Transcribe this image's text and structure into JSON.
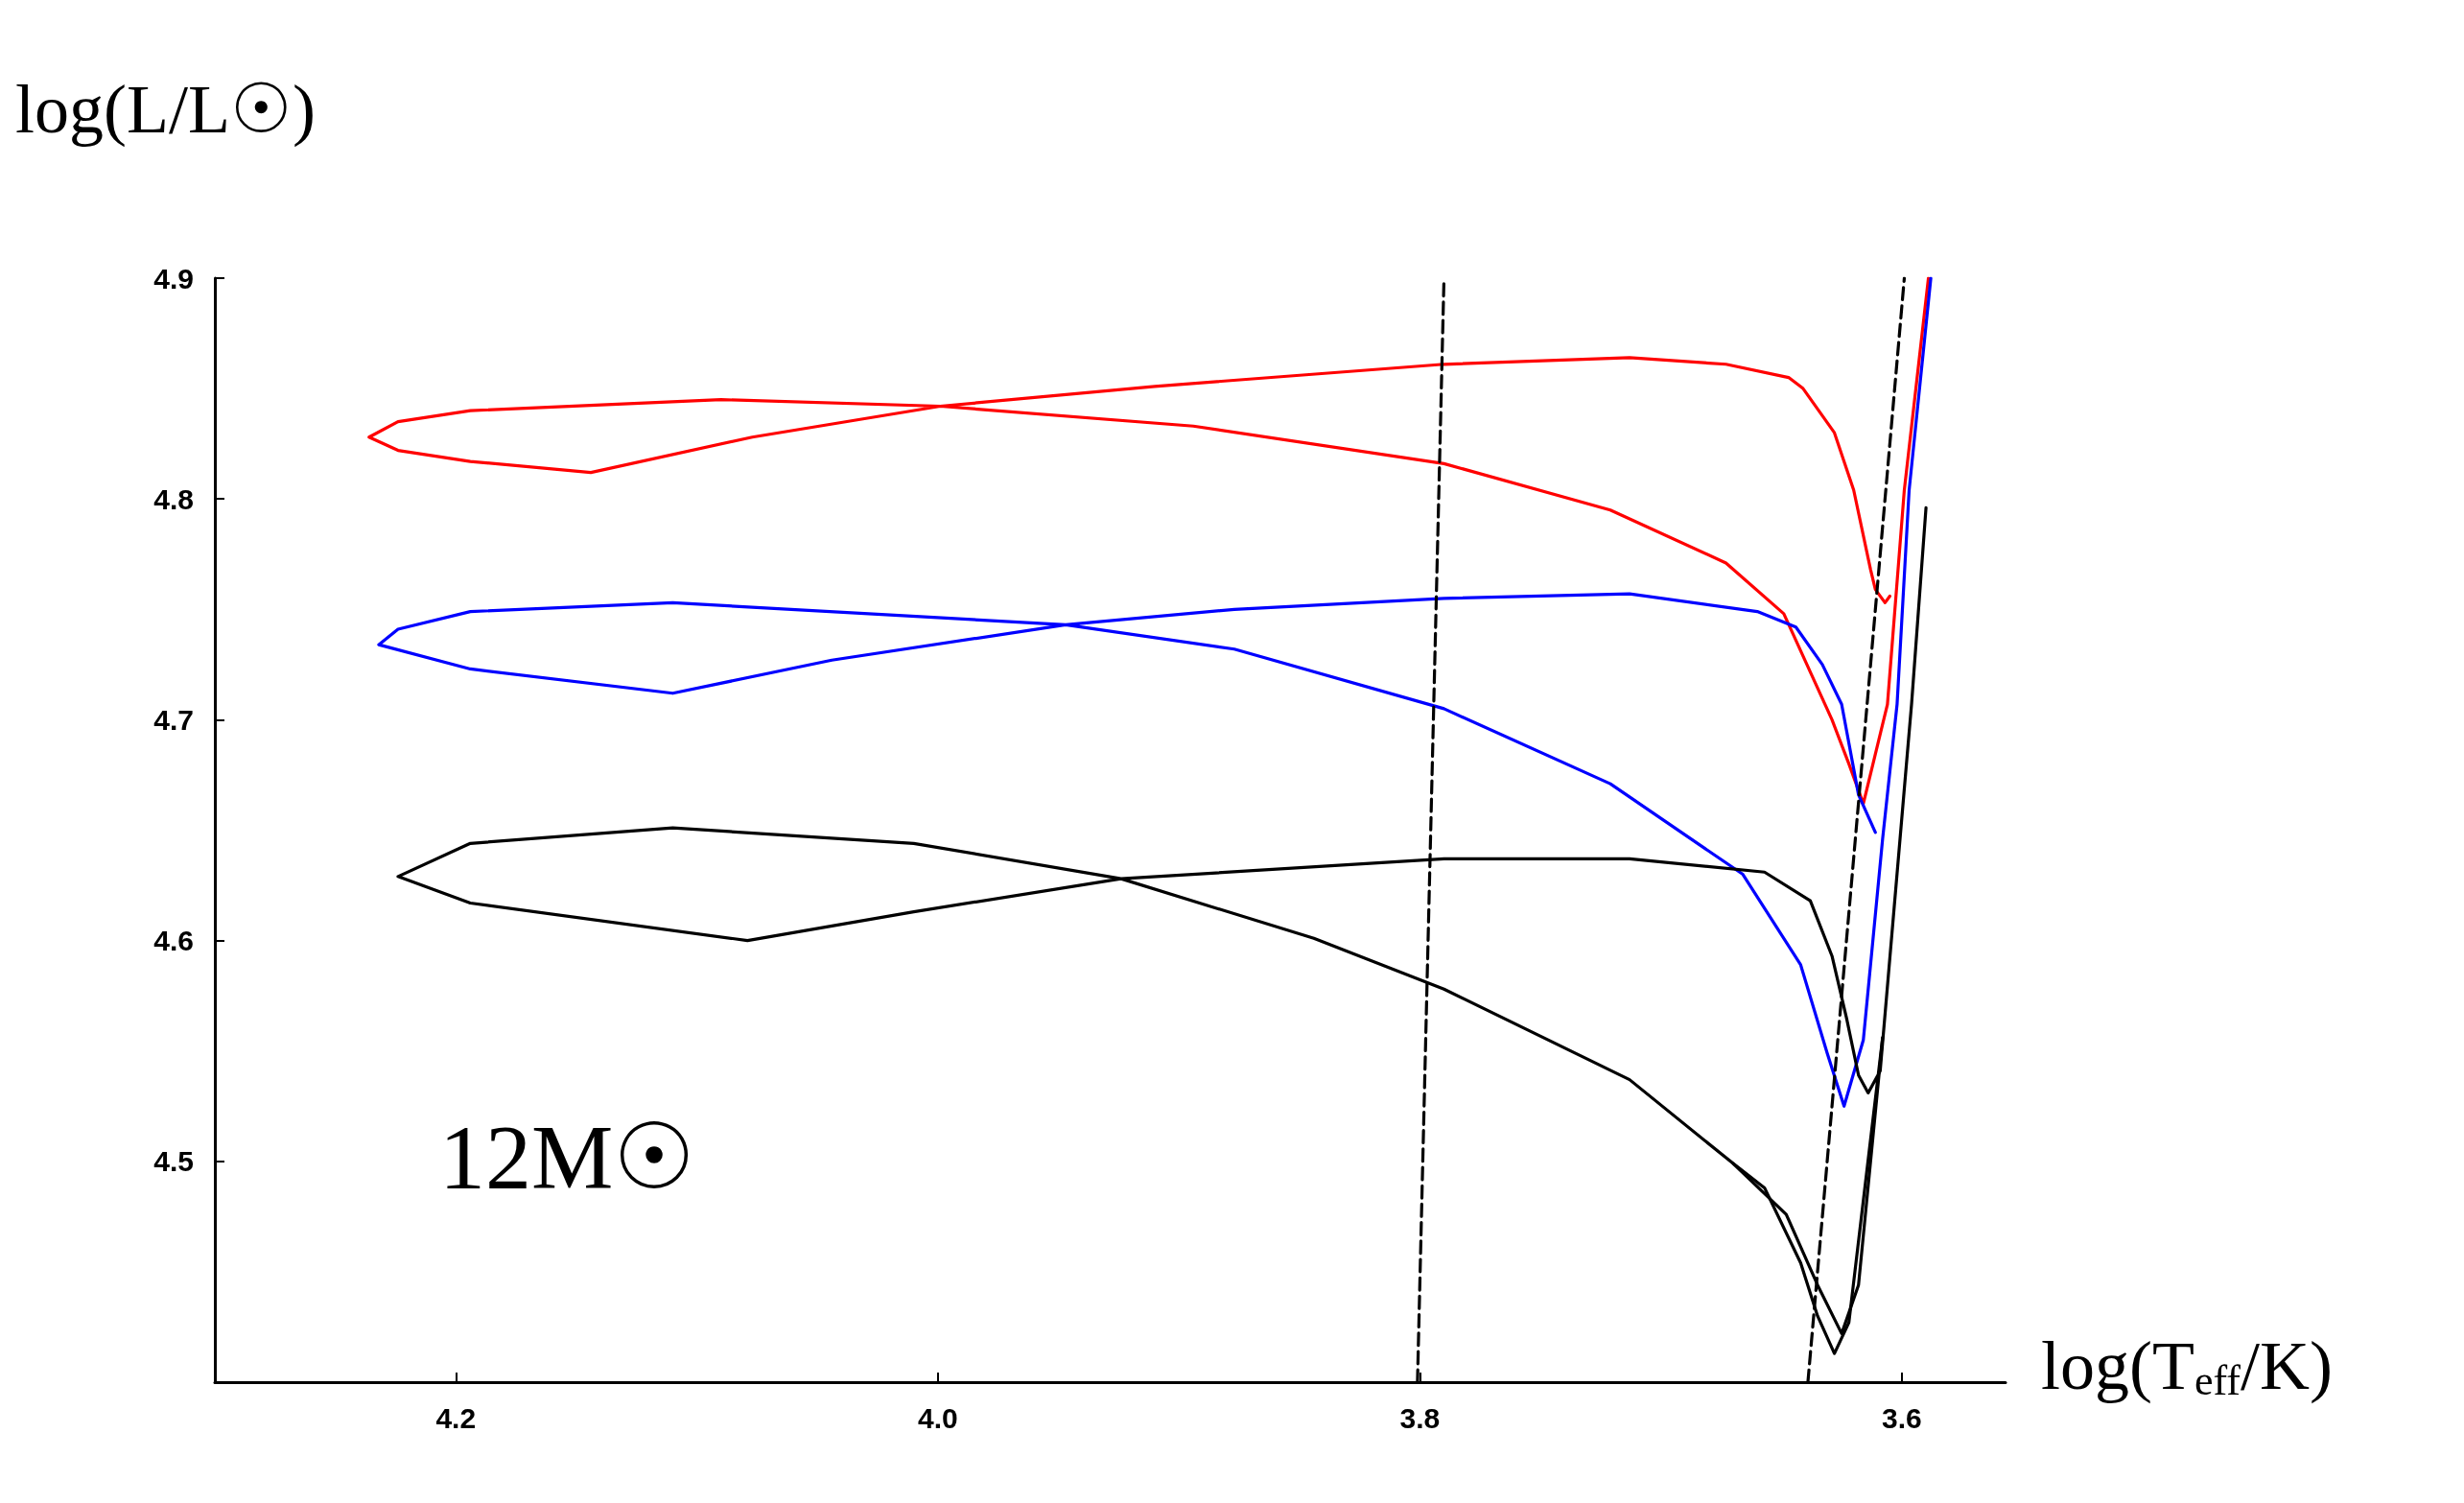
{
  "chart_data": {
    "type": "line",
    "xlabel": "log(T$_{eff}$/K)",
    "ylabel": "log(L/L☉)",
    "annotations": [
      "12M☉"
    ],
    "xlim": [
      4.3,
      3.557
    ],
    "ylim": [
      4.4,
      4.9
    ],
    "xticks": [
      4.2,
      {
        "value": 4,
        "label": "4.0"
      },
      3.8,
      3.6
    ],
    "yticks": [
      4.5,
      4.6,
      4.7,
      4.8,
      4.9
    ],
    "marker": "none",
    "line_style": "solid",
    "series": [
      {
        "color": "#ff0000",
        "x": [
          3.605,
          3.607,
          3.611,
          3.613,
          3.62,
          3.628,
          3.641,
          3.647,
          3.673,
          3.713,
          3.79,
          3.91,
          3.999,
          4.077,
          4.144,
          4.194,
          4.224,
          4.236,
          4.224,
          4.194,
          4.09,
          3.999,
          3.894,
          3.79,
          3.721,
          3.673,
          3.649,
          3.629,
          3.622,
          3.616,
          3.606,
          3.599,
          3.589
        ],
        "values": [
          4.756,
          4.753,
          4.759,
          4.768,
          4.804,
          4.83,
          4.85,
          4.855,
          4.861,
          4.864,
          4.861,
          4.851,
          4.842,
          4.828,
          4.812,
          4.817,
          4.822,
          4.828,
          4.835,
          4.84,
          4.845,
          4.842,
          4.833,
          4.816,
          4.795,
          4.771,
          4.748,
          4.7,
          4.68,
          4.662,
          4.707,
          4.804,
          4.9
        ]
      },
      {
        "color": "#0000ff",
        "x": [
          3.611,
          3.618,
          3.625,
          3.633,
          3.644,
          3.66,
          3.713,
          3.79,
          3.877,
          3.947,
          4.044,
          4.11,
          4.194,
          4.232,
          4.224,
          4.194,
          4.11,
          3.947,
          3.877,
          3.79,
          3.721,
          3.666,
          3.642,
          3.631,
          3.624,
          3.616,
          3.608,
          3.602,
          3.597,
          3.588
        ],
        "values": [
          4.649,
          4.666,
          4.707,
          4.725,
          4.742,
          4.749,
          4.757,
          4.755,
          4.75,
          4.743,
          4.727,
          4.712,
          4.723,
          4.734,
          4.741,
          4.749,
          4.753,
          4.743,
          4.732,
          4.705,
          4.671,
          4.63,
          4.589,
          4.549,
          4.525,
          4.555,
          4.646,
          4.707,
          4.804,
          4.9
        ]
      },
      {
        "color": "#000000",
        "x": [
          3.59,
          3.596,
          3.609,
          3.614,
          3.618,
          3.623,
          3.629,
          3.638,
          3.657,
          3.713,
          3.79,
          3.924,
          4.01,
          4.079,
          4.194,
          4.224,
          4.194,
          4.11,
          4.01,
          3.924,
          3.844,
          3.79,
          3.713,
          3.67,
          3.657,
          3.642,
          3.635,
          3.628,
          3.622,
          3.608
        ],
        "values": [
          4.796,
          4.707,
          4.541,
          4.531,
          4.539,
          4.565,
          4.593,
          4.618,
          4.631,
          4.637,
          4.637,
          4.628,
          4.613,
          4.6,
          4.617,
          4.629,
          4.644,
          4.651,
          4.644,
          4.628,
          4.601,
          4.578,
          4.537,
          4.499,
          4.488,
          4.454,
          4.43,
          4.413,
          4.427,
          4.556
        ]
      },
      {
        "color": "#000000",
        "x": [
          3.67,
          3.648,
          3.635,
          3.625,
          3.618,
          3.608
        ],
        "values": [
          4.499,
          4.476,
          4.444,
          4.422,
          4.444,
          4.556
        ]
      },
      {
        "color": "#000000",
        "line_style": "dashed",
        "x": [
          3.801,
          3.79
        ],
        "values": [
          4.4,
          4.9
        ]
      },
      {
        "color": "#000000",
        "line_style": "dashed",
        "x": [
          3.639,
          3.599
        ],
        "values": [
          4.4,
          4.9
        ]
      }
    ]
  }
}
